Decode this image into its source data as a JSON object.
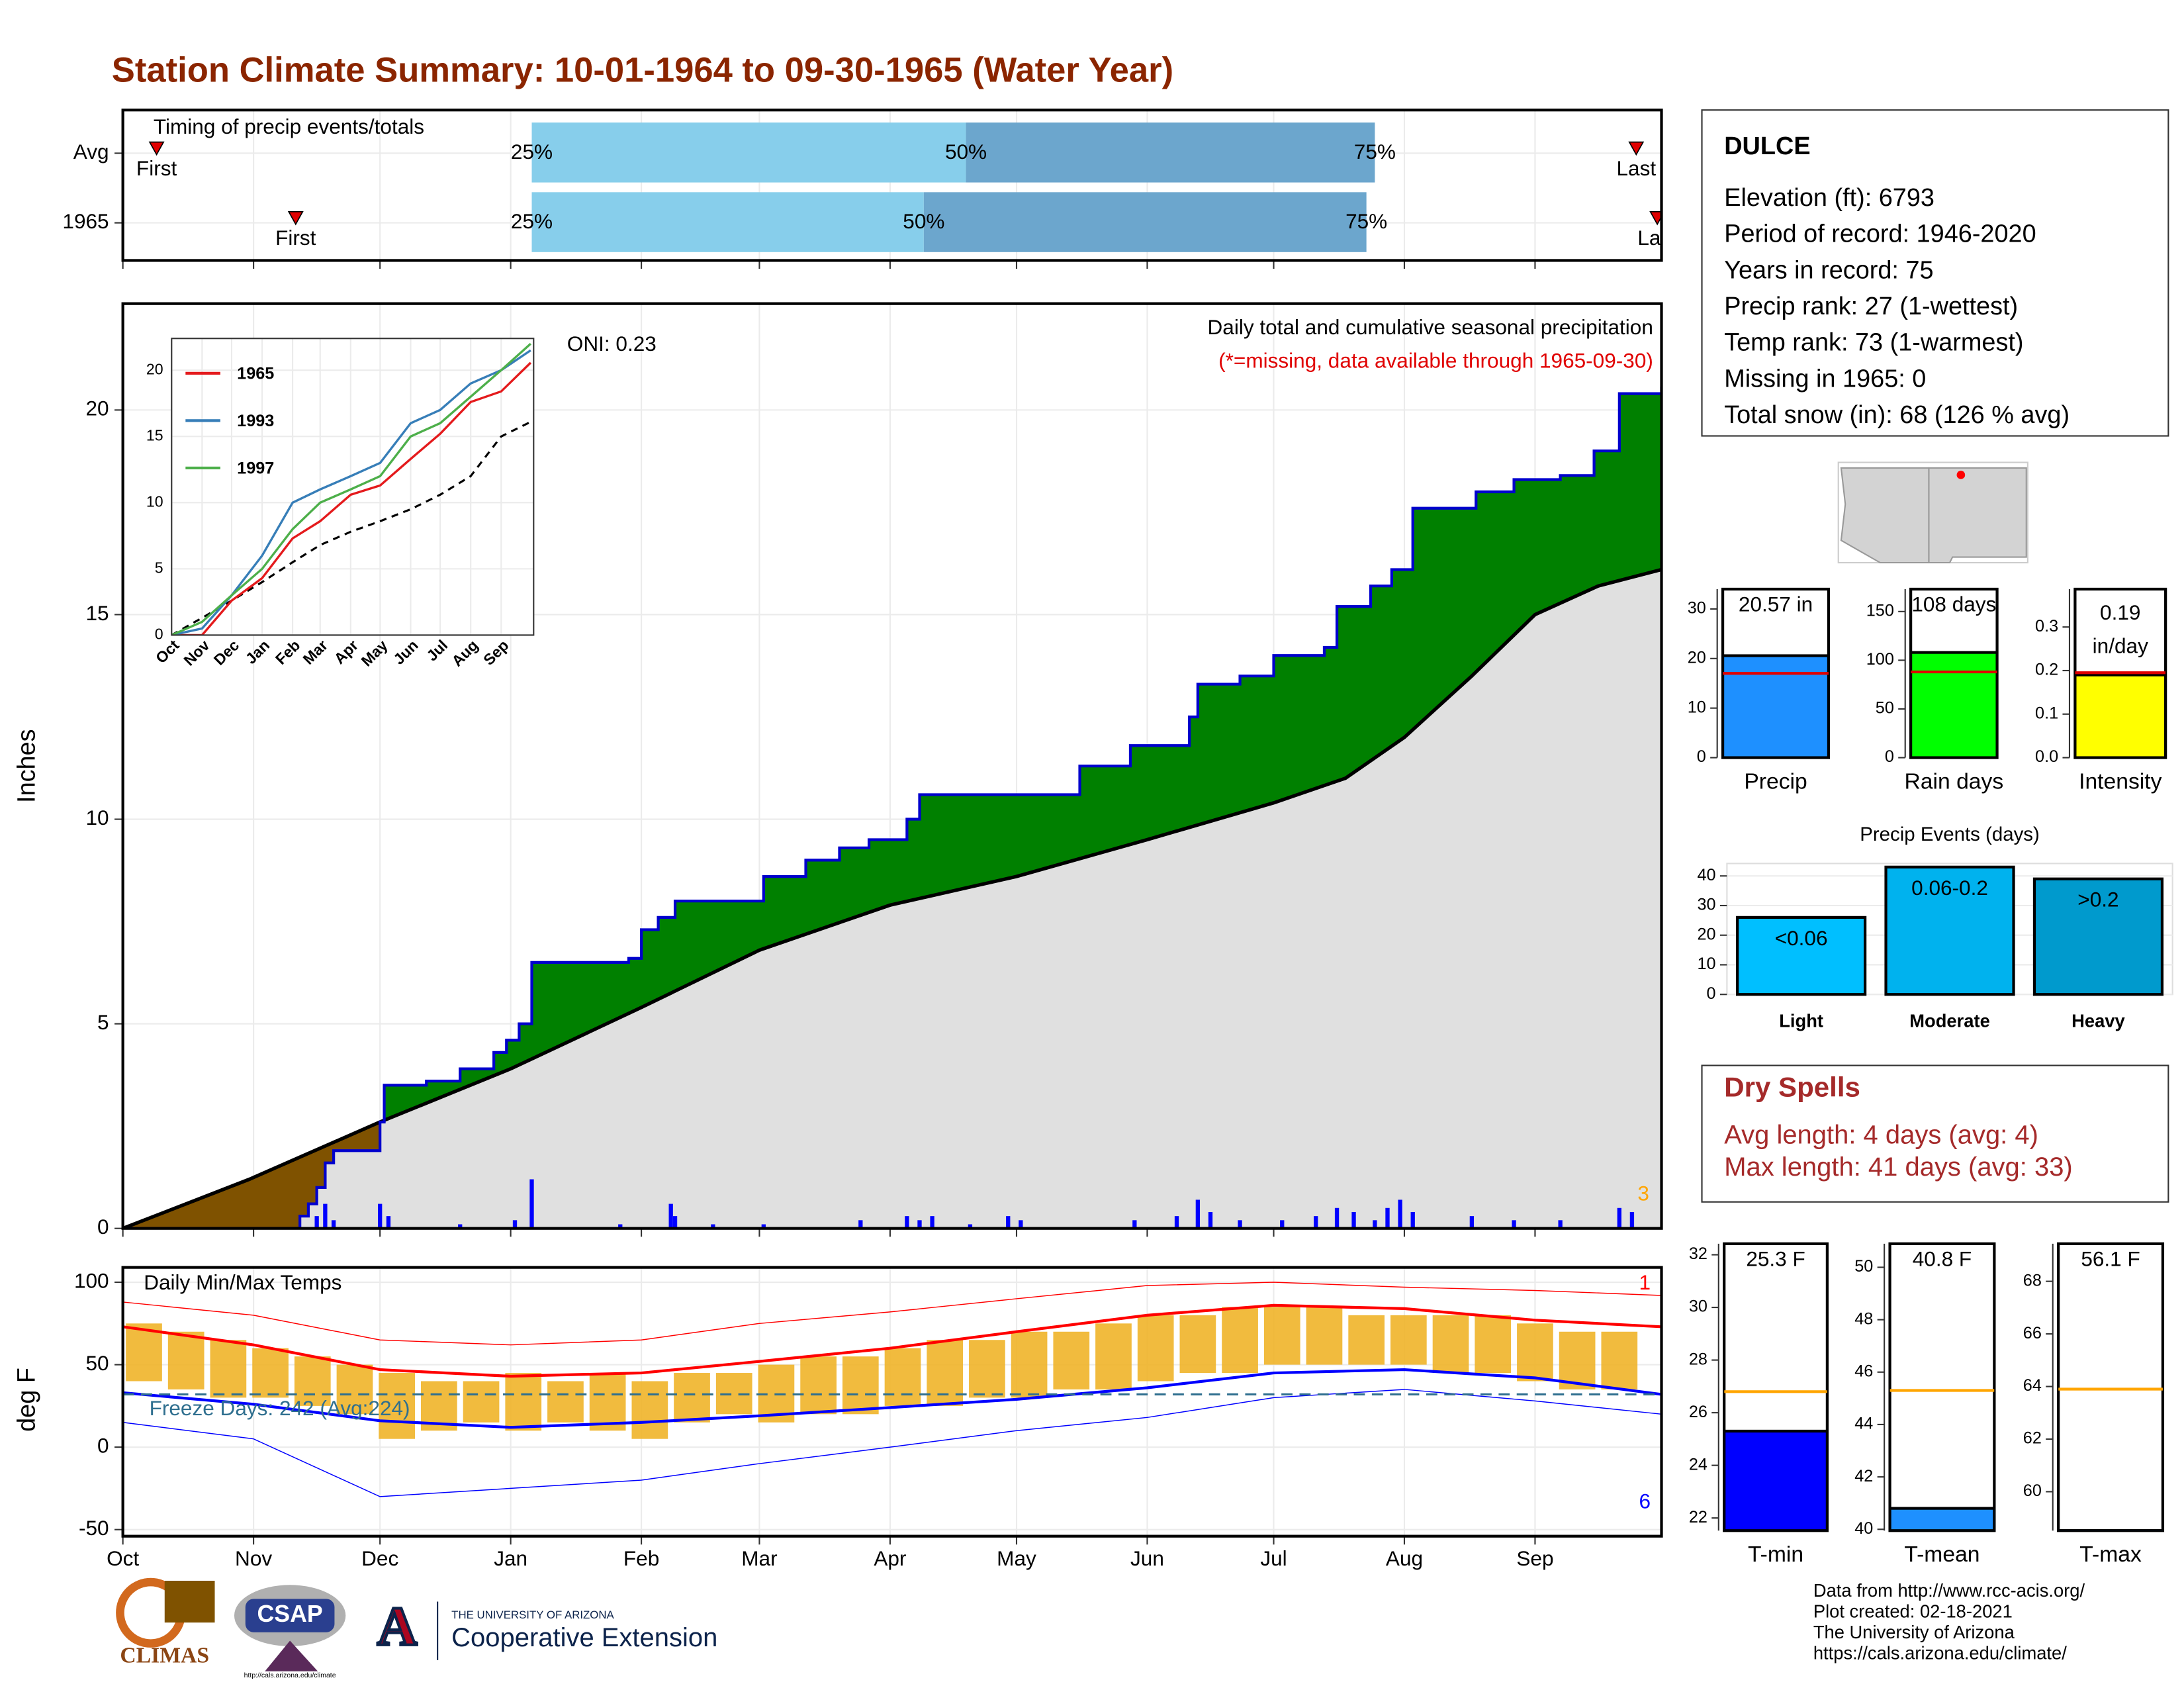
{
  "title": "Station Climate Summary: 10-01-1964 to 09-30-1965 (Water Year)",
  "station": {
    "name": "DULCE",
    "lines": [
      "Elevation (ft): 6793",
      "Period of record: 1946-2020",
      "Years in record: 75",
      "Precip rank: 27 (1-wettest)",
      "Temp rank: 73 (1-warmest)",
      "Missing in 1965: 0",
      "Total snow (in): 68 (126 % avg)"
    ]
  },
  "dry_spells": {
    "title": "Dry Spells",
    "lines": [
      "Avg length: 4 days (avg: 4)",
      "Max length: 41 days (avg: 33)"
    ]
  },
  "credits": [
    "Data from http://www.rcc-acis.org/",
    "Plot created: 02-18-2021",
    "The University of Arizona",
    "https://cals.arizona.edu/climate/"
  ],
  "logos": {
    "climas": "CLIMAS",
    "csap": "CSAP",
    "csap_url": "http://cals.arizona.edu/climate",
    "ua_letter": "A",
    "ua": "THE UNIVERSITY OF ARIZONA",
    "extension": "Cooperative Extension"
  },
  "chart_data": [
    {
      "type": "timing",
      "title": "Timing of precip events/totals",
      "categories": [
        "Avg",
        "1965"
      ],
      "xlim": [
        0,
        365
      ],
      "labels": [
        "First",
        "25%",
        "50%",
        "75%",
        "Last"
      ],
      "rows": [
        [
          8,
          97,
          200,
          297,
          359
        ],
        [
          41,
          97,
          190,
          295,
          364
        ]
      ],
      "colors": [
        "#87ceeb",
        "#6ca6cd"
      ],
      "marker_color": "#e00000"
    },
    {
      "type": "cumulative_precip",
      "y_label": "Inches",
      "title": "Daily total and cumulative seasonal precipitation",
      "subtitle": "(*=missing, data available through 1965-09-30)",
      "annotation": "ONI: 0.23",
      "corner_note": "3",
      "xlim": [
        0,
        365
      ],
      "ylim": [
        0,
        22.6
      ],
      "yticks": [
        0,
        5,
        10,
        15,
        20
      ],
      "grid": true,
      "observed": {
        "x": [
          0,
          40,
          42,
          44,
          46,
          48,
          50,
          61,
          62,
          72,
          80,
          88,
          91,
          94,
          97,
          120,
          123,
          127,
          131,
          152,
          162,
          170,
          177,
          186,
          189,
          225,
          227,
          239,
          253,
          255,
          265,
          273,
          285,
          288,
          296,
          301,
          306,
          321,
          330,
          341,
          349,
          355,
          365
        ],
        "values": [
          0,
          0,
          0.3,
          0.6,
          1.0,
          1.6,
          1.9,
          2.6,
          3.5,
          3.6,
          3.9,
          4.3,
          4.6,
          5.0,
          6.5,
          6.6,
          7.3,
          7.6,
          8.0,
          8.6,
          9.0,
          9.3,
          9.5,
          10.0,
          10.6,
          10.6,
          11.3,
          11.8,
          12.5,
          13.3,
          13.5,
          14.0,
          14.2,
          15.2,
          15.7,
          16.1,
          17.6,
          18.0,
          18.3,
          18.4,
          19.0,
          20.4,
          20.57
        ]
      },
      "average": {
        "x": [
          0,
          30,
          61,
          92,
          123,
          151,
          182,
          212,
          243,
          273,
          290,
          304,
          320,
          335,
          350,
          365
        ],
        "values": [
          0,
          1.2,
          2.6,
          3.9,
          5.4,
          6.8,
          7.9,
          8.6,
          9.5,
          10.4,
          11.0,
          12.0,
          13.5,
          15.0,
          15.7,
          16.1
        ]
      },
      "daily": {
        "x": [
          46,
          48,
          50,
          61,
          63,
          80,
          93,
          97,
          118,
          130,
          131,
          140,
          152,
          175,
          186,
          189,
          192,
          201,
          210,
          213,
          240,
          250,
          255,
          258,
          265,
          275,
          283,
          288,
          292,
          297,
          300,
          303,
          306,
          320,
          330,
          341,
          355,
          358
        ],
        "values": [
          0.3,
          0.6,
          0.2,
          0.6,
          0.3,
          0.1,
          0.2,
          1.2,
          0.1,
          0.6,
          0.3,
          0.1,
          0.1,
          0.2,
          0.3,
          0.2,
          0.3,
          0.1,
          0.3,
          0.2,
          0.2,
          0.3,
          0.7,
          0.4,
          0.2,
          0.2,
          0.3,
          0.5,
          0.4,
          0.2,
          0.5,
          0.7,
          0.4,
          0.3,
          0.2,
          0.2,
          0.5,
          0.4
        ]
      },
      "colors": {
        "observed": "#0000cd",
        "average": "#000000",
        "above": "#008000",
        "below": "#7f5200",
        "area": "#e0e0e0",
        "daily": "#0000ff",
        "note": "#ffa500",
        "subtitle": "#e00000"
      }
    },
    {
      "type": "line",
      "xlim": [
        0,
        368
      ],
      "ylim": [
        0,
        22.4
      ],
      "yticks": [
        0,
        5,
        10,
        15,
        20
      ],
      "xticks": [
        {
          "value": 0,
          "label": "Oct"
        },
        {
          "value": 31,
          "label": "Nov"
        },
        {
          "value": 61,
          "label": "Dec"
        },
        {
          "value": 92,
          "label": "Jan"
        },
        {
          "value": 123,
          "label": "Feb"
        },
        {
          "value": 151,
          "label": "Mar"
        },
        {
          "value": 182,
          "label": "Apr"
        },
        {
          "value": 212,
          "label": "May"
        },
        {
          "value": 243,
          "label": "Jun"
        },
        {
          "value": 273,
          "label": "Jul"
        },
        {
          "value": 304,
          "label": "Aug"
        },
        {
          "value": 335,
          "label": "Sep"
        }
      ],
      "x": [
        0,
        31,
        61,
        92,
        123,
        151,
        182,
        212,
        243,
        273,
        304,
        335,
        365
      ],
      "series": [
        {
          "name": "1965",
          "color": "#e41a1c",
          "values": [
            0,
            0,
            2.6,
            4.3,
            7.3,
            8.6,
            10.6,
            11.3,
            13.3,
            15.2,
            17.6,
            18.4,
            20.57
          ]
        },
        {
          "name": "1993",
          "color": "#377eb8",
          "values": [
            0,
            0.5,
            3,
            6,
            10,
            11,
            12,
            13,
            16,
            17,
            19,
            20,
            21.5
          ]
        },
        {
          "name": "1997",
          "color": "#4daf4a",
          "values": [
            0,
            1,
            3,
            5,
            8,
            10,
            11,
            12,
            15,
            16,
            18,
            20,
            22
          ]
        }
      ],
      "average": [
        0,
        1.3,
        2.6,
        4,
        5.5,
        6.8,
        7.8,
        8.6,
        9.5,
        10.6,
        12,
        15,
        16.1
      ]
    },
    {
      "type": "temperature",
      "title": "Daily Min/Max Temps",
      "y_label": "deg F",
      "freeze_label": "Freeze Days: 242 (Avg:224)",
      "freeze": 32,
      "notes": [
        "1",
        "6"
      ],
      "xlim": [
        0,
        365
      ],
      "ylim": [
        -54,
        109
      ],
      "yticks": [
        -50,
        0,
        50,
        100
      ],
      "xticks": [
        {
          "value": 0,
          "label": "Oct"
        },
        {
          "value": 31,
          "label": "Nov"
        },
        {
          "value": 61,
          "label": "Dec"
        },
        {
          "value": 92,
          "label": "Jan"
        },
        {
          "value": 123,
          "label": "Feb"
        },
        {
          "value": 151,
          "label": "Mar"
        },
        {
          "value": 182,
          "label": "Apr"
        },
        {
          "value": 212,
          "label": "May"
        },
        {
          "value": 243,
          "label": "Jun"
        },
        {
          "value": 273,
          "label": "Jul"
        },
        {
          "value": 304,
          "label": "Aug"
        },
        {
          "value": 335,
          "label": "Sep"
        }
      ],
      "daily": {
        "x": [
          5,
          15,
          25,
          35,
          45,
          55,
          65,
          75,
          85,
          95,
          105,
          115,
          125,
          135,
          145,
          155,
          165,
          175,
          185,
          195,
          205,
          215,
          225,
          235,
          245,
          255,
          265,
          275,
          285,
          295,
          305,
          315,
          325,
          335,
          345,
          355
        ],
        "low": [
          40,
          35,
          30,
          30,
          25,
          20,
          5,
          10,
          15,
          10,
          15,
          10,
          5,
          15,
          20,
          15,
          20,
          20,
          25,
          25,
          30,
          30,
          35,
          35,
          40,
          45,
          45,
          50,
          50,
          50,
          50,
          45,
          45,
          40,
          35,
          35
        ],
        "high": [
          75,
          70,
          65,
          60,
          55,
          50,
          45,
          40,
          40,
          45,
          40,
          45,
          40,
          45,
          45,
          50,
          55,
          55,
          60,
          65,
          65,
          70,
          70,
          75,
          80,
          80,
          85,
          85,
          85,
          80,
          80,
          80,
          80,
          75,
          70,
          70
        ]
      },
      "months_x": [
        0,
        31,
        61,
        92,
        123,
        151,
        182,
        212,
        243,
        273,
        304,
        335,
        365
      ],
      "normal_high": [
        73,
        62,
        47,
        43,
        45,
        52,
        60,
        70,
        80,
        86,
        84,
        77,
        73
      ],
      "normal_low": [
        33,
        26,
        16,
        12,
        15,
        19,
        24,
        29,
        36,
        45,
        47,
        42,
        32
      ],
      "record_high": [
        88,
        80,
        65,
        62,
        65,
        75,
        82,
        90,
        98,
        100,
        97,
        95,
        92
      ],
      "record_low": [
        15,
        5,
        -30,
        -25,
        -20,
        -10,
        0,
        10,
        18,
        30,
        35,
        28,
        20
      ],
      "colors": {
        "bars": "#f0b429",
        "high": "#ff0000",
        "low": "#0000ff",
        "freeze": "#2f6f8f"
      }
    },
    {
      "type": "summary_bar",
      "categories": [
        "Precip"
      ],
      "values": [
        20.57
      ],
      "value_labels": [
        "20.57 in"
      ],
      "average": 17.0,
      "ylim": [
        0,
        34
      ],
      "yticks": [
        0,
        10,
        20,
        30
      ],
      "color": "#1e90ff",
      "average_color": "#e00000"
    },
    {
      "type": "summary_bar",
      "categories": [
        "Rain days"
      ],
      "values": [
        108
      ],
      "value_labels": [
        "108 days"
      ],
      "average": 88,
      "ylim": [
        0,
        173
      ],
      "yticks": [
        0,
        50,
        100,
        150
      ],
      "color": "#00ff00",
      "average_color": "#e00000"
    },
    {
      "type": "summary_bar",
      "categories": [
        "Intensity"
      ],
      "values": [
        0.19
      ],
      "value_labels": [
        "0.19 in/day"
      ],
      "wrap": true,
      "average": 0.195,
      "ylim": [
        0,
        0.387
      ],
      "yticks": [
        {
          "value": 0,
          "label": "0.0"
        },
        0.1,
        0.2,
        0.3
      ],
      "color": "#ffff00",
      "average_color": "#e00000"
    },
    {
      "type": "bar",
      "title": "Precip Events (days)",
      "categories": [
        "Light",
        "Moderate",
        "Heavy"
      ],
      "values": [
        26,
        43,
        39
      ],
      "bin_labels": [
        "<0.06",
        "0.06-0.2",
        ">0.2"
      ],
      "colors": [
        "#00bfff",
        "#00b2ee",
        "#009acd"
      ],
      "ylim": [
        0,
        44.2
      ],
      "yticks": [
        0,
        10,
        20,
        30,
        40
      ],
      "grid": true
    },
    {
      "type": "summary_bar",
      "categories": [
        "T-min"
      ],
      "values": [
        25.3
      ],
      "value_labels": [
        "25.3 F"
      ],
      "average": 26.8,
      "ylim": [
        21.52,
        32.42
      ],
      "yticks": [
        22,
        24,
        26,
        28,
        30,
        32
      ],
      "color": "#0000ff",
      "average_color": "#ffa500"
    },
    {
      "type": "summary_bar",
      "categories": [
        "T-mean"
      ],
      "values": [
        40.8
      ],
      "value_labels": [
        "40.8 F"
      ],
      "average": 45.3,
      "ylim": [
        39.95,
        50.9
      ],
      "yticks": [
        40,
        42,
        44,
        46,
        48,
        50
      ],
      "color": "#1e90ff",
      "average_color": "#ffa500"
    },
    {
      "type": "summary_bar",
      "categories": [
        "T-max"
      ],
      "values": [
        56.1
      ],
      "value_labels": [
        "56.1 F"
      ],
      "average": 63.9,
      "ylim": [
        58.52,
        69.43
      ],
      "yticks": [
        60,
        62,
        64,
        66,
        68
      ],
      "color": "#1e90ff",
      "average_color": "#ffa500"
    }
  ]
}
